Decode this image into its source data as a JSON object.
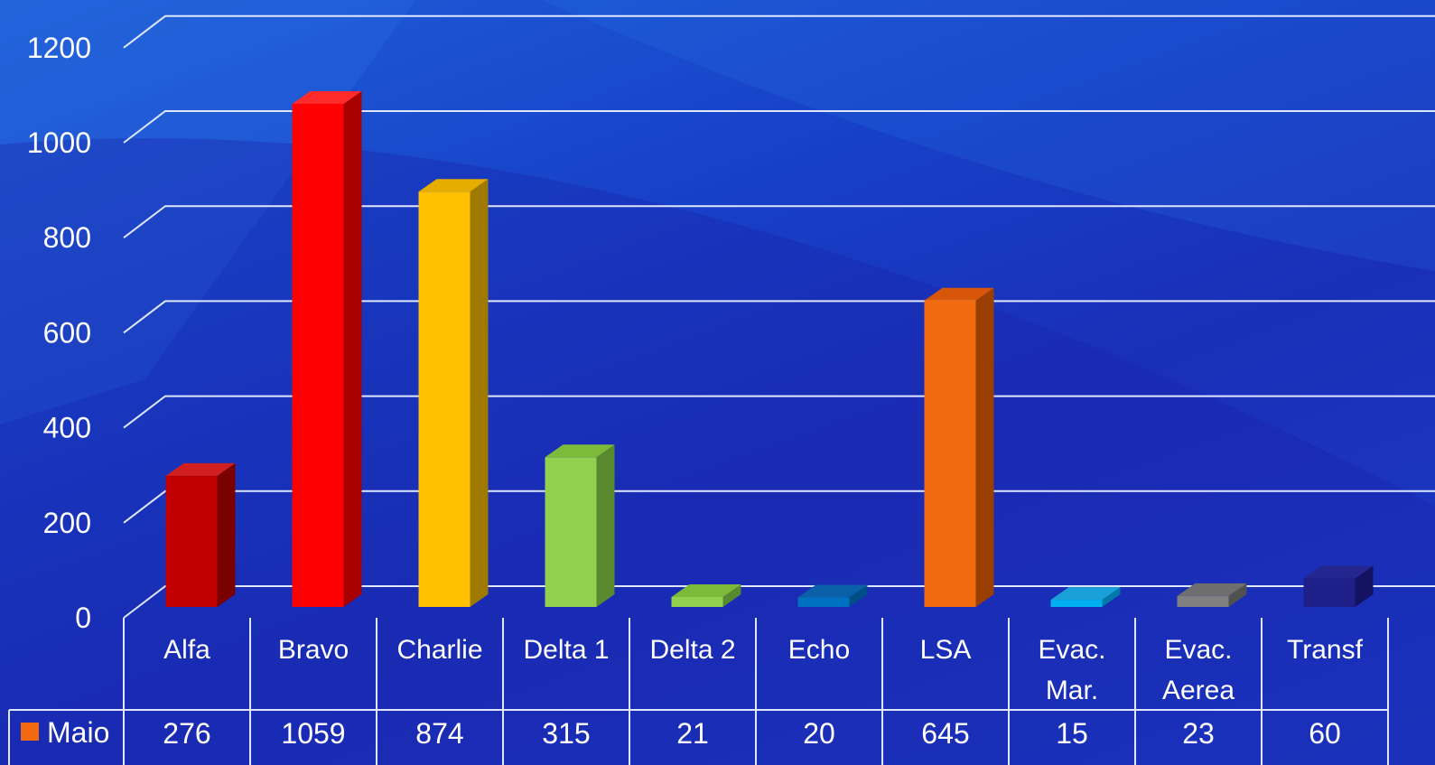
{
  "chart_data": {
    "type": "bar",
    "categories": [
      [
        "Alfa"
      ],
      [
        "Bravo"
      ],
      [
        "Charlie"
      ],
      [
        "Delta 1"
      ],
      [
        "Delta 2"
      ],
      [
        "Echo"
      ],
      [
        "LSA"
      ],
      [
        "Evac.",
        "Mar."
      ],
      [
        "Evac.",
        "Aerea"
      ],
      [
        "Transf"
      ]
    ],
    "series": [
      {
        "name": "Maio",
        "values": [
          276,
          1059,
          874,
          315,
          21,
          20,
          645,
          15,
          23,
          60
        ],
        "legend_color": "#f26a10"
      }
    ],
    "bar_colors": [
      {
        "front": "#c00000",
        "side": "#7a0000",
        "top": "#d22020"
      },
      {
        "front": "#ff0000",
        "side": "#a80000",
        "top": "#ff2a2a"
      },
      {
        "front": "#ffc000",
        "side": "#a07a00",
        "top": "#e6ad00"
      },
      {
        "front": "#92d050",
        "side": "#5a8a30",
        "top": "#7cbb3a"
      },
      {
        "front": "#92d050",
        "side": "#5a8a30",
        "top": "#7cbb3a"
      },
      {
        "front": "#0070c0",
        "side": "#004e88",
        "top": "#0a5fa8"
      },
      {
        "front": "#f26a10",
        "side": "#9a3f00",
        "top": "#d8560a"
      },
      {
        "front": "#00b0f0",
        "side": "#0078a8",
        "top": "#1aa0d8"
      },
      {
        "front": "#808080",
        "side": "#505050",
        "top": "#6e6e6e"
      },
      {
        "front": "#1f1f8a",
        "side": "#121260",
        "top": "#25258f"
      }
    ],
    "y_ticks": [
      "0",
      "200",
      "400",
      "600",
      "800",
      "1000",
      "1200"
    ],
    "ylim": [
      0,
      1200
    ],
    "grid": true,
    "data_table": true
  }
}
